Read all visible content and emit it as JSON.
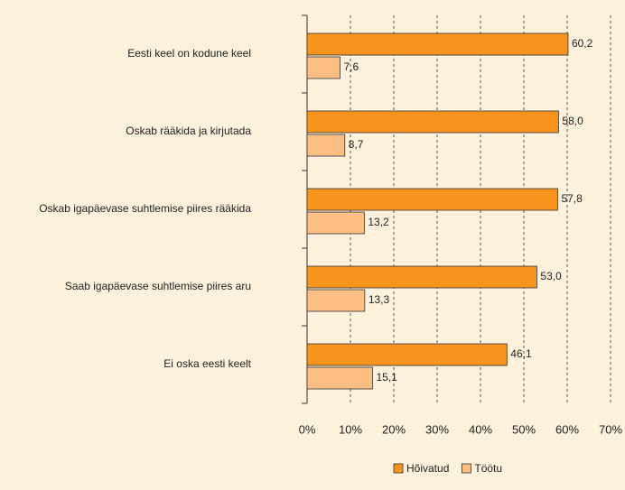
{
  "chart_data": {
    "type": "bar",
    "orientation": "horizontal",
    "categories": [
      "Eesti keel on kodune keel",
      "Oskab rääkida ja kirjutada",
      "Oskab igapäevase suhtlemise piires rääkida",
      "Saab igapäevase suhtlemise piires aru",
      "Ei oska eesti keelt"
    ],
    "series": [
      {
        "name": "Hõivatud",
        "color": "#f7941d",
        "values": [
          60.2,
          58.0,
          57.8,
          53.0,
          46.1
        ],
        "value_labels": [
          "60,2",
          "58,0",
          "57,8",
          "53,0",
          "46,1"
        ]
      },
      {
        "name": "Töötu",
        "color": "#fbbf84",
        "values": [
          7.6,
          8.7,
          13.2,
          13.3,
          15.1
        ],
        "value_labels": [
          "7,6",
          "8,7",
          "13,2",
          "13,3",
          "15,1"
        ]
      }
    ],
    "xlim": [
      0,
      70
    ],
    "xticks": [
      {
        "value": 0,
        "label": "0%"
      },
      {
        "value": 10,
        "label": "10%"
      },
      {
        "value": 20,
        "label": "20%"
      },
      {
        "value": 30,
        "label": "30%"
      },
      {
        "value": 40,
        "label": "40%"
      },
      {
        "value": 50,
        "label": "50%"
      },
      {
        "value": 60,
        "label": "60%"
      },
      {
        "value": 70,
        "label": "70%"
      }
    ],
    "grid": true,
    "legend": "bottom"
  }
}
